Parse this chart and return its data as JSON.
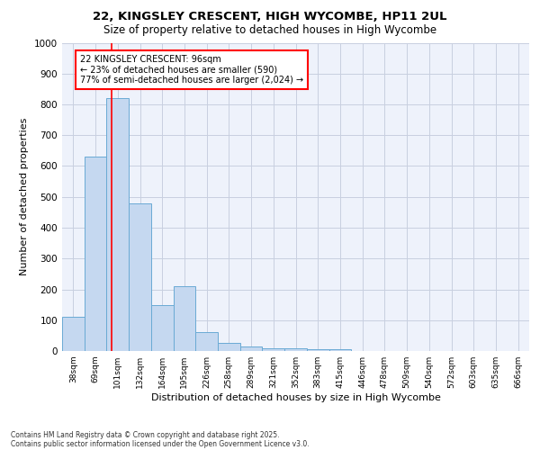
{
  "title1": "22, KINGSLEY CRESCENT, HIGH WYCOMBE, HP11 2UL",
  "title2": "Size of property relative to detached houses in High Wycombe",
  "xlabel": "Distribution of detached houses by size in High Wycombe",
  "ylabel": "Number of detached properties",
  "bar_labels": [
    "38sqm",
    "69sqm",
    "101sqm",
    "132sqm",
    "164sqm",
    "195sqm",
    "226sqm",
    "258sqm",
    "289sqm",
    "321sqm",
    "352sqm",
    "383sqm",
    "415sqm",
    "446sqm",
    "478sqm",
    "509sqm",
    "540sqm",
    "572sqm",
    "603sqm",
    "635sqm",
    "666sqm"
  ],
  "bar_values": [
    110,
    630,
    820,
    480,
    150,
    210,
    60,
    25,
    15,
    10,
    10,
    5,
    5,
    0,
    0,
    0,
    0,
    0,
    0,
    0,
    0
  ],
  "bar_color": "#c5d8f0",
  "bar_edge_color": "#6aaad4",
  "red_line_x": 1.72,
  "annotation_line1": "22 KINGSLEY CRESCENT: 96sqm",
  "annotation_line2": "← 23% of detached houses are smaller (590)",
  "annotation_line3": "77% of semi-detached houses are larger (2,024) →",
  "ylim": [
    0,
    1000
  ],
  "yticks": [
    0,
    100,
    200,
    300,
    400,
    500,
    600,
    700,
    800,
    900,
    1000
  ],
  "background_color": "#eef2fb",
  "grid_color": "#c8cfe0",
  "footer1": "Contains HM Land Registry data © Crown copyright and database right 2025.",
  "footer2": "Contains public sector information licensed under the Open Government Licence v3.0."
}
